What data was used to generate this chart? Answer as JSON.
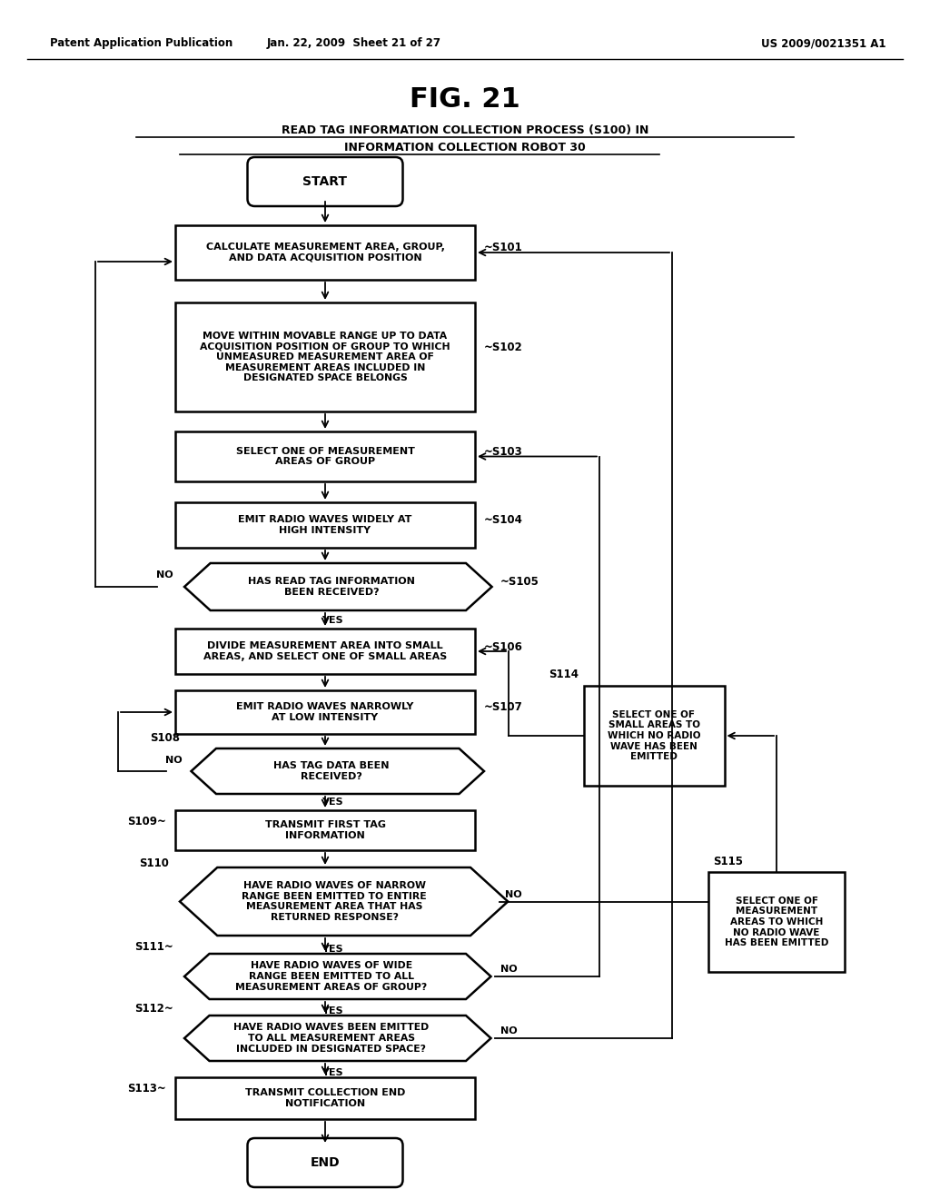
{
  "title": "FIG. 21",
  "subtitle_line1": "READ TAG INFORMATION COLLECTION PROCESS (S100) IN",
  "subtitle_line2": "INFORMATION COLLECTION ROBOT 30",
  "header_left": "Patent Application Publication",
  "header_center": "Jan. 22, 2009  Sheet 21 of 27",
  "header_right": "US 2009/0021351 A1",
  "bg_color": "#ffffff"
}
